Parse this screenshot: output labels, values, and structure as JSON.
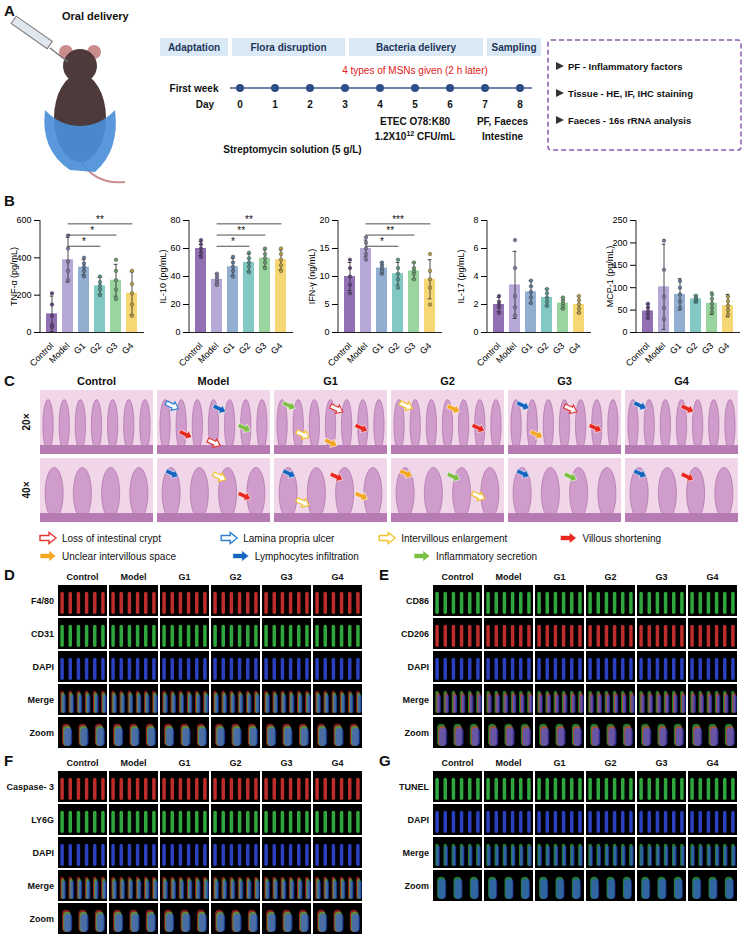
{
  "figure": {
    "columns": [
      "Control",
      "Model",
      "G1",
      "G2",
      "G3",
      "G4"
    ],
    "panel_A": {
      "letter": "A",
      "illustration_label": "Oral delivery",
      "phases": [
        "Adaptation",
        "Flora disruption",
        "Bacteria delivery",
        "Sampling"
      ],
      "week_label": "First week",
      "day_label": "Day",
      "days": [
        0,
        1,
        2,
        3,
        4,
        5,
        6,
        7,
        8
      ],
      "treatment_note": "4 types of MSNs given (2 h later)",
      "streptomycin": "Streptomycin solution (5 g/L)",
      "bacteria": {
        "strain": "ETEC O78:K80",
        "dose": "1.2X10",
        "dose_exponent": "12",
        "unit": "CFU/mL"
      },
      "sampling": [
        "PF, Faeces",
        "Intestine"
      ],
      "analyses": [
        "PF - Inflammatory factors",
        "Tissue - HE, IF, IHC staining",
        "Faeces - 16s rRNA analysis"
      ]
    },
    "panel_B": {
      "letter": "B"
    },
    "panel_C": {
      "letter": "C",
      "rows": [
        {
          "label": "20×",
          "arrows": [
            [],
            [
              "Lamina propria ulcer",
              "Lymphocytes infiltration",
              "Inflammatory secretion",
              "Villous shortening",
              "Loss of intestinal crypt"
            ],
            [
              "Inflammatory secretion",
              "Loss of intestinal crypt",
              "Villous shortening",
              "Intervillous enlargement",
              "Unclear intervillous space"
            ],
            [
              "Intervillous enlargement",
              "Unclear intervillous space",
              "Villous shortening"
            ],
            [
              "Lymphocytes infiltration",
              "Loss of intestinal crypt",
              "Villous shortening",
              "Unclear intervillous space"
            ],
            [
              "Lymphocytes infiltration",
              "Villous shortening"
            ]
          ]
        },
        {
          "label": "40×",
          "arrows": [
            [],
            [
              "Lymphocytes infiltration",
              "Intervillous enlargement",
              "Villous shortening"
            ],
            [
              "Lymphocytes infiltration",
              "Villous shortening",
              "Unclear intervillous space",
              "Intervillous enlargement"
            ],
            [
              "Unclear intervillous space",
              "Inflammatory secretion",
              "Intervillous enlargement"
            ],
            [
              "Lymphocytes infiltration",
              "Inflammatory secretion"
            ],
            [
              "Lymphocytes infiltration",
              "Villous shortening"
            ]
          ]
        }
      ],
      "legend": [
        {
          "label": "Loss of intestinal crypt",
          "color": "#e53935",
          "marker": "outline"
        },
        {
          "label": "Lamina propria ulcer",
          "color": "#2f7fd1",
          "marker": "outline"
        },
        {
          "label": "Intervillous enlargement",
          "color": "#f2c230",
          "marker": "outline"
        },
        {
          "label": "Villous shortening",
          "color": "#e8271f",
          "marker": "filled"
        },
        {
          "label": "Unclear intervillous space",
          "color": "#f5a623",
          "marker": "filled"
        },
        {
          "label": "Lymphocytes infiltration",
          "color": "#1565c0",
          "marker": "filled"
        },
        {
          "label": "Inflammatory secretion",
          "color": "#7bc043",
          "marker": "filled"
        }
      ]
    },
    "if_panels": [
      {
        "letter": "D",
        "rows": [
          {
            "label": "F4/80",
            "color": "#ff3b3b"
          },
          {
            "label": "CD31",
            "color": "#3ee052"
          },
          {
            "label": "DAPI",
            "color": "#3a55ff"
          },
          {
            "label": "Merge"
          },
          {
            "label": "Zoom"
          }
        ]
      },
      {
        "letter": "E",
        "rows": [
          {
            "label": "CD86",
            "color": "#3ee052"
          },
          {
            "label": "CD206",
            "color": "#ff3b3b"
          },
          {
            "label": "DAPI",
            "color": "#3a55ff"
          },
          {
            "label": "Merge"
          },
          {
            "label": "Zoom"
          }
        ]
      },
      {
        "letter": "F",
        "rows": [
          {
            "label": "Caspase- 3",
            "color": "#ff3b3b"
          },
          {
            "label": "LY6G",
            "color": "#3ee052"
          },
          {
            "label": "DAPI",
            "color": "#3a55ff"
          },
          {
            "label": "Merge"
          },
          {
            "label": "Zoom"
          }
        ]
      },
      {
        "letter": "G",
        "rows": [
          {
            "label": "TUNEL",
            "color": "#3ee052"
          },
          {
            "label": "DAPI",
            "color": "#3a55ff"
          },
          {
            "label": "Merge"
          },
          {
            "label": "Zoom"
          }
        ]
      }
    ]
  },
  "chart_data": [
    {
      "type": "bar",
      "ylabel": "TNF-α (pg/mL)",
      "categories": [
        "Control",
        "Model",
        "G1",
        "G2",
        "G3",
        "G4"
      ],
      "values": [
        100,
        390,
        350,
        250,
        280,
        210
      ],
      "errors": [
        95,
        120,
        40,
        45,
        85,
        115
      ],
      "points": [
        [
          30,
          40,
          90,
          150,
          210
        ],
        [
          280,
          330,
          380,
          450,
          520
        ],
        [
          300,
          330,
          350,
          370,
          400
        ],
        [
          200,
          230,
          250,
          270,
          300
        ],
        [
          180,
          230,
          280,
          330,
          390
        ],
        [
          90,
          150,
          210,
          260,
          330
        ]
      ],
      "colors": [
        "#7e57a6",
        "#a99ad1",
        "#7fa0c9",
        "#6dbfb8",
        "#88cc8e",
        "#f5d05a"
      ],
      "ylim": [
        0,
        600
      ],
      "yticks": [
        0,
        200,
        400,
        600
      ],
      "significance": [
        {
          "from": "Model",
          "to": "G2",
          "label": "*"
        },
        {
          "from": "Model",
          "to": "G3",
          "label": "*"
        },
        {
          "from": "Model",
          "to": "G4",
          "label": "**"
        }
      ]
    },
    {
      "type": "bar",
      "ylabel": "IL-10 (pg/mL)",
      "categories": [
        "Control",
        "Model",
        "G1",
        "G2",
        "G3",
        "G4"
      ],
      "values": [
        60,
        38,
        47,
        50,
        53,
        52
      ],
      "errors": [
        5,
        4,
        6,
        6,
        6,
        7
      ],
      "points": [
        [
          54,
          57,
          60,
          63,
          66
        ],
        [
          34,
          36,
          38,
          40,
          42
        ],
        [
          40,
          44,
          47,
          50,
          54
        ],
        [
          43,
          47,
          50,
          53,
          57
        ],
        [
          46,
          50,
          53,
          56,
          60
        ],
        [
          44,
          48,
          52,
          56,
          60
        ]
      ],
      "colors": [
        "#7e57a6",
        "#a99ad1",
        "#7fa0c9",
        "#6dbfb8",
        "#88cc8e",
        "#f5d05a"
      ],
      "ylim": [
        0,
        80
      ],
      "yticks": [
        0,
        20,
        40,
        60,
        80
      ],
      "significance": [
        {
          "from": "Model",
          "to": "G2",
          "label": "*"
        },
        {
          "from": "Model",
          "to": "G3",
          "label": "**"
        },
        {
          "from": "Model",
          "to": "G4",
          "label": "**"
        }
      ]
    },
    {
      "type": "bar",
      "ylabel": "IFN-γ (ng/mL)",
      "categories": [
        "Control",
        "Model",
        "G1",
        "G2",
        "G3",
        "G4"
      ],
      "values": [
        10,
        15,
        11.5,
        10.5,
        11,
        9.5
      ],
      "errors": [
        2.5,
        1.5,
        1,
        2,
        1.5,
        3.5
      ],
      "points": [
        [
          7,
          8.5,
          10,
          11.5,
          13
        ],
        [
          13,
          14,
          15,
          16,
          17
        ],
        [
          10.5,
          11,
          11.5,
          12,
          12.5
        ],
        [
          8,
          9.5,
          10.5,
          11.5,
          13
        ],
        [
          9.5,
          10.5,
          11,
          11.5,
          12.5
        ],
        [
          5,
          8,
          9.5,
          11,
          14
        ]
      ],
      "colors": [
        "#7e57a6",
        "#a99ad1",
        "#7fa0c9",
        "#6dbfb8",
        "#88cc8e",
        "#f5d05a"
      ],
      "ylim": [
        0,
        20
      ],
      "yticks": [
        0,
        5,
        10,
        15,
        20
      ],
      "significance": [
        {
          "from": "Model",
          "to": "G2",
          "label": "*"
        },
        {
          "from": "Model",
          "to": "G3",
          "label": "**"
        },
        {
          "from": "Model",
          "to": "G4",
          "label": "***"
        }
      ]
    },
    {
      "type": "bar",
      "ylabel": "IL-17 (pg/mL)",
      "categories": [
        "Control",
        "Model",
        "G1",
        "G2",
        "G3",
        "G4"
      ],
      "values": [
        2,
        3.4,
        2.9,
        2.5,
        2.1,
        2
      ],
      "errors": [
        0.5,
        2.4,
        0.8,
        0.6,
        0.4,
        0.6
      ],
      "points": [
        [
          1.4,
          1.8,
          2,
          2.2,
          2.6
        ],
        [
          1.2,
          1.8,
          2.6,
          4.6,
          6.6
        ],
        [
          2.1,
          2.5,
          2.9,
          3.3,
          3.7
        ],
        [
          1.9,
          2.2,
          2.5,
          2.8,
          3.1
        ],
        [
          1.7,
          1.9,
          2.1,
          2.3,
          2.5
        ],
        [
          1.4,
          1.7,
          2,
          2.3,
          2.6
        ]
      ],
      "colors": [
        "#7e57a6",
        "#a99ad1",
        "#7fa0c9",
        "#6dbfb8",
        "#88cc8e",
        "#f5d05a"
      ],
      "ylim": [
        0,
        8
      ],
      "yticks": [
        0,
        2,
        4,
        6,
        8
      ],
      "significance": []
    },
    {
      "type": "bar",
      "ylabel": "MCP-1 (pg/mL)",
      "categories": [
        "Control",
        "Model",
        "G1",
        "G2",
        "G3",
        "G4"
      ],
      "values": [
        48,
        102,
        85,
        75,
        65,
        60
      ],
      "errors": [
        15,
        95,
        35,
        8,
        25,
        25
      ],
      "points": [
        [
          32,
          40,
          48,
          56,
          64
        ],
        [
          30,
          55,
          80,
          140,
          205
        ],
        [
          55,
          70,
          85,
          100,
          115
        ],
        [
          68,
          72,
          75,
          78,
          82
        ],
        [
          45,
          55,
          65,
          75,
          85
        ],
        [
          40,
          50,
          60,
          70,
          80
        ]
      ],
      "colors": [
        "#7e57a6",
        "#a99ad1",
        "#7fa0c9",
        "#6dbfb8",
        "#88cc8e",
        "#f5d05a"
      ],
      "ylim": [
        0,
        250
      ],
      "yticks": [
        0,
        50,
        100,
        150,
        200,
        250
      ],
      "significance": []
    }
  ]
}
